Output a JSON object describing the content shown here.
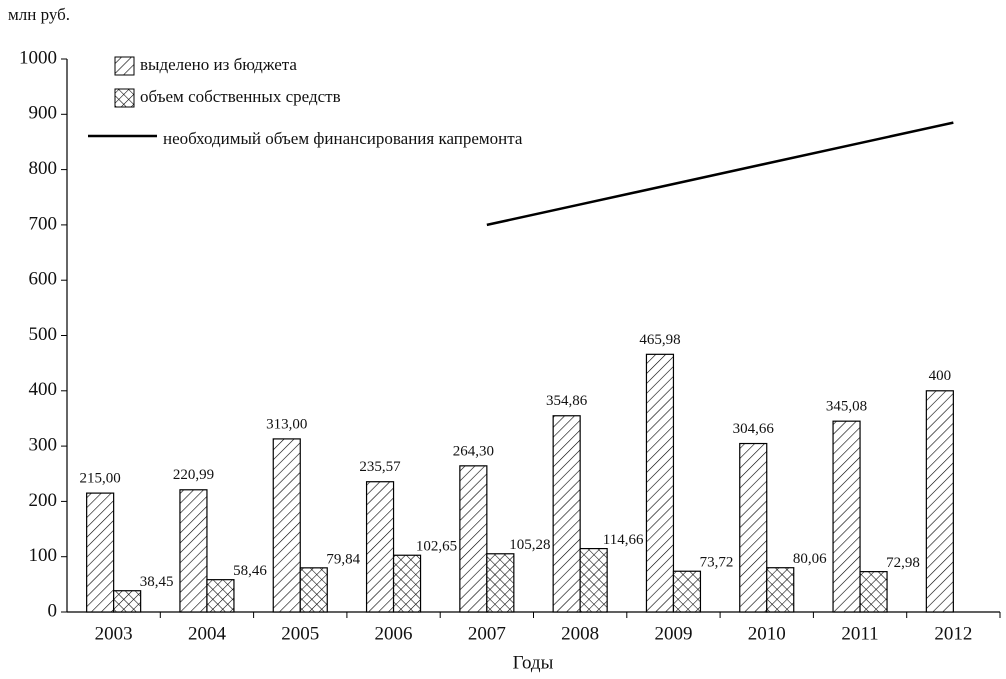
{
  "chart_data": {
    "type": "bar",
    "y_unit_label": "млн руб.",
    "x_label": "Годы",
    "categories": [
      "2003",
      "2004",
      "2005",
      "2006",
      "2007",
      "2008",
      "2009",
      "2010",
      "2011",
      "2012"
    ],
    "series": [
      {
        "name": "выделено из бюджета",
        "type": "bar",
        "color": "#000000",
        "hatch": "diagonal",
        "values": [
          215,
          220.99,
          313,
          235.57,
          264.3,
          354.86,
          465.98,
          304.66,
          345.08,
          400
        ],
        "value_labels": [
          "215,00",
          "220,99",
          "313,00",
          "235,57",
          "264,30",
          "354,86",
          "465,98",
          "304,66",
          "345,08",
          "400"
        ]
      },
      {
        "name": "объем собственных средств",
        "type": "bar",
        "color": "#000000",
        "hatch": "cross",
        "values": [
          38.45,
          58.46,
          79.84,
          102.65,
          105.28,
          114.66,
          73.72,
          80.06,
          72.98,
          null
        ],
        "value_labels": [
          "38,45",
          "58,46",
          "79,84",
          "102,65",
          "105,28",
          "114,66",
          "73,72",
          "80,06",
          "72,98",
          null
        ]
      },
      {
        "name": "необходимый объем финансирования капремонта",
        "type": "line",
        "color": "#000000",
        "values": [
          null,
          null,
          null,
          null,
          700,
          737,
          774,
          811,
          848,
          885
        ]
      }
    ],
    "ylim": [
      0,
      1000
    ],
    "yticks": [
      0,
      100,
      200,
      300,
      400,
      500,
      600,
      700,
      800,
      900,
      1000
    ],
    "legend": "top-left"
  }
}
